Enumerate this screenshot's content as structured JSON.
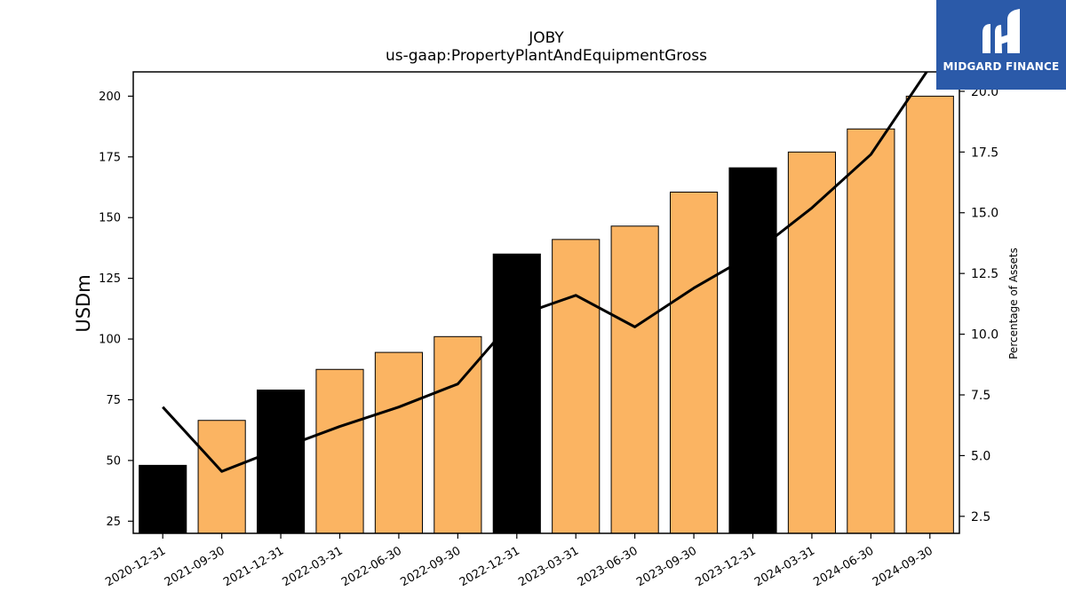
{
  "chart_data": {
    "type": "bar",
    "title": "JOBY",
    "subtitle": "us-gaap:PropertyPlantAndEquipmentGross",
    "ylabel": "USDm",
    "y2label": "Percentage of Assets",
    "categories": [
      "2020-12-31",
      "2021-09-30",
      "2021-12-31",
      "2022-03-31",
      "2022-06-30",
      "2022-09-30",
      "2022-12-31",
      "2023-03-31",
      "2023-06-30",
      "2023-09-30",
      "2023-12-31",
      "2024-03-31",
      "2024-06-30",
      "2024-09-30"
    ],
    "values": [
      48,
      66.5,
      79,
      87.5,
      94.5,
      101,
      135,
      141,
      146.5,
      160.5,
      170.5,
      177,
      186.5,
      200
    ],
    "bar_colors": [
      "#000000",
      "#fbb462",
      "#000000",
      "#fbb462",
      "#fbb462",
      "#fbb462",
      "#000000",
      "#fbb462",
      "#fbb462",
      "#fbb462",
      "#000000",
      "#fbb462",
      "#fbb462",
      "#fbb462"
    ],
    "line_values": [
      7.0,
      4.35,
      5.3,
      6.2,
      7.0,
      7.95,
      10.75,
      11.6,
      10.3,
      11.9,
      13.3,
      15.2,
      17.4,
      21.0
    ],
    "line_color": "#000000",
    "ylim": [
      20,
      210
    ],
    "y2lim": [
      1.8,
      20.8
    ],
    "yticks": [
      25,
      50,
      75,
      100,
      125,
      150,
      175,
      200
    ],
    "y2ticks": [
      2.5,
      5.0,
      7.5,
      10.0,
      12.5,
      15.0,
      17.5,
      20.0
    ],
    "grid": false
  },
  "logo": {
    "text": "MIDGARD FINANCE"
  }
}
